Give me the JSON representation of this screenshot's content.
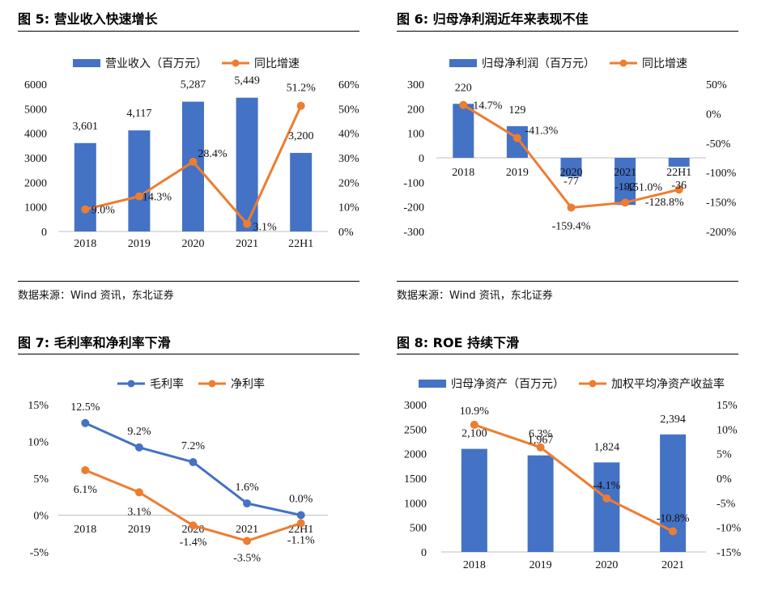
{
  "colors": {
    "bar": "#4472C4",
    "line": "#ED7D31",
    "blue_line": "#4472C4"
  },
  "panels": [
    {
      "title": "图 5: 营业收入快速增长",
      "source": "数据来源：Wind 资讯，东北证券"
    },
    {
      "title": "图 6: 归母净利润近年来表现不佳",
      "source": "数据来源：Wind 资讯，东北证券"
    },
    {
      "title": "图 7: 毛利率和净利率下滑"
    },
    {
      "title": "图 8: ROE 持续下滑"
    }
  ],
  "chart_data": [
    {
      "type": "bar",
      "title": "营业收入快速增长",
      "categories": [
        "2018",
        "2019",
        "2020",
        "2021",
        "22H1"
      ],
      "series": [
        {
          "name": "营业收入（百万元）",
          "kind": "bar",
          "axis": "left",
          "values": [
            3601,
            4117,
            5287,
            5449,
            3200
          ],
          "labels": [
            "3,601",
            "4,117",
            "5,287",
            "5,449",
            "3,200"
          ]
        },
        {
          "name": "同比增速",
          "kind": "line",
          "axis": "right",
          "values": [
            9.0,
            14.3,
            28.4,
            3.1,
            51.2
          ],
          "labels": [
            "9.0%",
            "14.3%",
            "28.4%",
            "3.1%",
            "51.2%"
          ]
        }
      ],
      "yleft": {
        "min": 0,
        "max": 6000,
        "ticks": [
          "0",
          "1000",
          "2000",
          "3000",
          "4000",
          "5000",
          "6000"
        ]
      },
      "yright": {
        "min": 0,
        "max": 60,
        "ticks": [
          "0%",
          "10%",
          "20%",
          "30%",
          "40%",
          "50%",
          "60%"
        ]
      },
      "legend": "top-center"
    },
    {
      "type": "bar",
      "title": "归母净利润近年来表现不佳",
      "categories": [
        "2018",
        "2019",
        "2020",
        "2021",
        "22H1"
      ],
      "series": [
        {
          "name": "归母净利润（百万元）",
          "kind": "bar",
          "axis": "left",
          "values": [
            220,
            129,
            -77,
            -192,
            -36
          ],
          "labels": [
            "220",
            "129",
            "-77",
            "-192",
            "-36"
          ]
        },
        {
          "name": "同比增速",
          "kind": "line",
          "axis": "right",
          "values": [
            14.7,
            -41.3,
            -159.4,
            -151.0,
            -128.8
          ],
          "labels": [
            "14.7%",
            "-41.3%",
            "-159.4%",
            "-151.0%",
            "-128.8%"
          ]
        }
      ],
      "yleft": {
        "min": -300,
        "max": 300,
        "ticks": [
          "-300",
          "-200",
          "-100",
          "0",
          "100",
          "200",
          "300"
        ]
      },
      "yright": {
        "min": -200,
        "max": 50,
        "ticks": [
          "-200%",
          "-150%",
          "-100%",
          "-50%",
          "0%",
          "50%"
        ]
      },
      "legend": "top-center"
    },
    {
      "type": "line",
      "title": "毛利率和净利率下滑",
      "categories": [
        "2018",
        "2019",
        "2020",
        "2021",
        "22H1"
      ],
      "series": [
        {
          "name": "毛利率",
          "values": [
            12.5,
            9.2,
            7.2,
            1.6,
            0.0
          ],
          "labels": [
            "12.5%",
            "9.2%",
            "7.2%",
            "1.6%",
            "0.0%"
          ]
        },
        {
          "name": "净利率",
          "values": [
            6.1,
            3.1,
            -1.4,
            -3.5,
            -1.1
          ],
          "labels": [
            "6.1%",
            "3.1%",
            "-1.4%",
            "-3.5%",
            "-1.1%"
          ]
        }
      ],
      "yleft": {
        "min": -5,
        "max": 15,
        "ticks": [
          "-5%",
          "0%",
          "5%",
          "10%",
          "15%"
        ]
      },
      "legend": "top-center"
    },
    {
      "type": "bar",
      "title": "ROE 持续下滑",
      "categories": [
        "2018",
        "2019",
        "2020",
        "2021"
      ],
      "series": [
        {
          "name": "归母净资产（百万元）",
          "kind": "bar",
          "axis": "left",
          "values": [
            2100,
            1967,
            1824,
            2394
          ],
          "labels": [
            "2,100",
            "1,967",
            "1,824",
            "2,394"
          ]
        },
        {
          "name": "加权平均净资产收益率",
          "kind": "line",
          "axis": "right",
          "values": [
            10.9,
            6.3,
            -4.1,
            -10.8
          ],
          "labels": [
            "10.9%",
            "6.3%",
            "-4.1%",
            "-10.8%"
          ]
        }
      ],
      "yleft": {
        "min": 0,
        "max": 3000,
        "ticks": [
          "0",
          "500",
          "1000",
          "1500",
          "2000",
          "2500",
          "3000"
        ]
      },
      "yright": {
        "min": -15,
        "max": 15,
        "ticks": [
          "-15%",
          "-10%",
          "-5%",
          "0%",
          "5%",
          "10%",
          "15%"
        ]
      },
      "legend": "top-center"
    }
  ]
}
